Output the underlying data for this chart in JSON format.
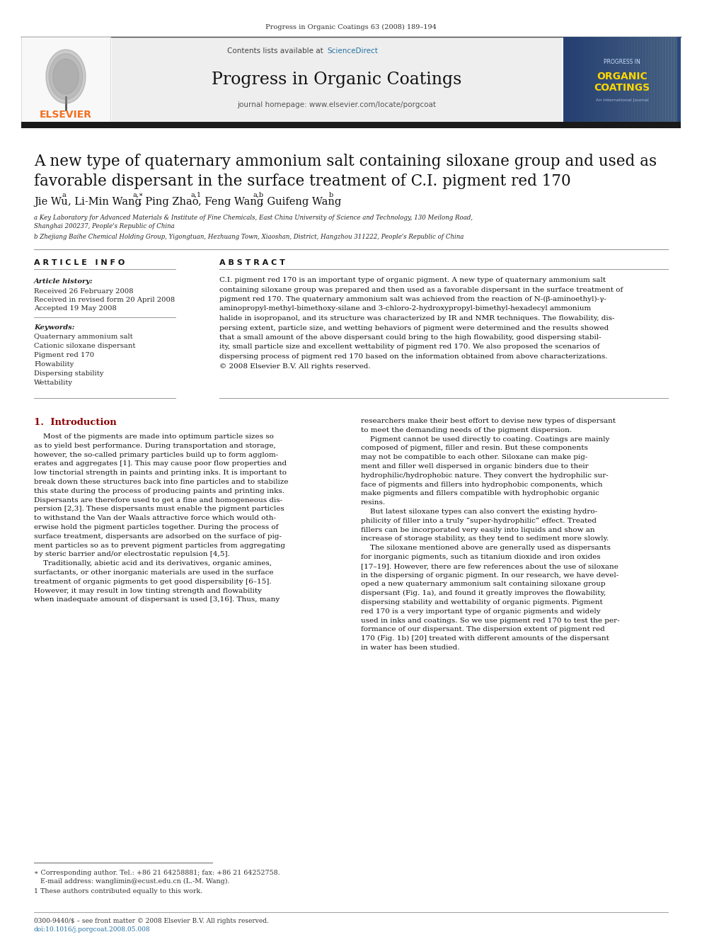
{
  "journal_ref": "Progress in Organic Coatings 63 (2008) 189–194",
  "contents_line": "Contents lists available at ",
  "science_direct": "ScienceDirect",
  "journal_name": "Progress in Organic Coatings",
  "journal_homepage": "journal homepage: www.elsevier.com/locate/porgcoat",
  "title_line1": "A new type of quaternary ammonium salt containing siloxane group and used as",
  "title_line2": "favorable dispersant in the surface treatment of C.I. pigment red 170",
  "affil_a": "a Key Laboratory for Advanced Materials & Institute of Fine Chemicals, East China University of Science and Technology, 130 Meilong Road,\nShanghai 200237, People's Republic of China",
  "affil_b": "b Zhejiang Baihe Chemical Holding Group, Yigongtuan, Hezhuang Town, Xiaoshan, District, Hangzhou 311222, People's Republic of China",
  "article_info_title": "A R T I C L E   I N F O",
  "abstract_title": "A B S T R A C T",
  "article_history_title": "Article history:",
  "received": "Received 26 February 2008",
  "received_revised": "Received in revised form 20 April 2008",
  "accepted": "Accepted 19 May 2008",
  "keywords_title": "Keywords:",
  "keywords": [
    "Quaternary ammonium salt",
    "Cationic siloxane dispersant",
    "Pigment red 170",
    "Flowability",
    "Dispersing stability",
    "Wettability"
  ],
  "abstract_text": "C.I. pigment red 170 is an important type of organic pigment. A new type of quaternary ammonium salt\ncontaining siloxane group was prepared and then used as a favorable dispersant in the surface treatment of\npigment red 170. The quaternary ammonium salt was achieved from the reaction of N-(β-aminoethyl)-γ-\naminopropyl-methyl-bimethoxy-silane and 3-chloro-2-hydroxypropyl-bimethyl-hexadecyl ammonium\nhalide in isopropanol, and its structure was characterized by IR and NMR techniques. The flowability, dis-\npersing extent, particle size, and wetting behaviors of pigment were determined and the results showed\nthat a small amount of the above dispersant could bring to the high flowability, good dispersing stabil-\nity, small particle size and excellent wettability of pigment red 170. We also proposed the scenarios of\ndispersing process of pigment red 170 based on the information obtained from above characterizations.\n© 2008 Elsevier B.V. All rights reserved.",
  "intro_section": "1.  Introduction",
  "intro_col1_lines": [
    "    Most of the pigments are made into optimum particle sizes so",
    "as to yield best performance. During transportation and storage,",
    "however, the so-called primary particles build up to form agglom-",
    "erates and aggregates [1]. This may cause poor flow properties and",
    "low tinctorial strength in paints and printing inks. It is important to",
    "break down these structures back into fine particles and to stabilize",
    "this state during the process of producing paints and printing inks.",
    "Dispersants are therefore used to get a fine and homogeneous dis-",
    "persion [2,3]. These dispersants must enable the pigment particles",
    "to withstand the Van der Waals attractive force which would oth-",
    "erwise hold the pigment particles together. During the process of",
    "surface treatment, dispersants are adsorbed on the surface of pig-",
    "ment particles so as to prevent pigment particles from aggregating",
    "by steric barrier and/or electrostatic repulsion [4,5].",
    "    Traditionally, abietic acid and its derivatives, organic amines,",
    "surfactants, or other inorganic materials are used in the surface",
    "treatment of organic pigments to get good dispersibility [6–15].",
    "However, it may result in low tinting strength and flowability",
    "when inadequate amount of dispersant is used [3,16]. Thus, many"
  ],
  "intro_col2_lines": [
    "researchers make their best effort to devise new types of dispersant",
    "to meet the demanding needs of the pigment dispersion.",
    "    Pigment cannot be used directly to coating. Coatings are mainly",
    "composed of pigment, filler and resin. But these components",
    "may not be compatible to each other. Siloxane can make pig-",
    "ment and filler well dispersed in organic binders due to their",
    "hydrophilic/hydrophobic nature. They convert the hydrophilic sur-",
    "face of pigments and fillers into hydrophobic components, which",
    "make pigments and fillers compatible with hydrophobic organic",
    "resins.",
    "    But latest siloxane types can also convert the existing hydro-",
    "philicity of filler into a truly “super-hydrophilic” effect. Treated",
    "fillers can be incorporated very easily into liquids and show an",
    "increase of storage stability, as they tend to sediment more slowly.",
    "    The siloxane mentioned above are generally used as dispersants",
    "for inorganic pigments, such as titanium dioxide and iron oxides",
    "[17–19]. However, there are few references about the use of siloxane",
    "in the dispersing of organic pigment. In our research, we have devel-",
    "oped a new quaternary ammonium salt containing siloxane group",
    "dispersant (Fig. 1a), and found it greatly improves the flowability,",
    "dispersing stability and wettability of organic pigments. Pigment",
    "red 170 is a very important type of organic pigments and widely",
    "used in inks and coatings. So we use pigment red 170 to test the per-",
    "formance of our dispersant. The dispersion extent of pigment red",
    "170 (Fig. 1b) [20] treated with different amounts of the dispersant",
    "in water has been studied."
  ],
  "footer_left": "0300-9440/$ – see front matter © 2008 Elsevier B.V. All rights reserved.",
  "footer_doi": "doi:10.1016/j.porgcoat.2008.05.008",
  "footnote_star1": "∗ Corresponding author. Tel.: +86 21 64258881; fax: +86 21 64252758.",
  "footnote_star2": "   E-mail address: wanglimin@ecust.edu.cn (L.-M. Wang).",
  "footnote_1": "1 These authors contributed equally to this work.",
  "bg_color": "#ffffff",
  "elsevier_orange": "#f37021",
  "link_blue": "#2471a3",
  "intro_section_color": "#8B0000"
}
